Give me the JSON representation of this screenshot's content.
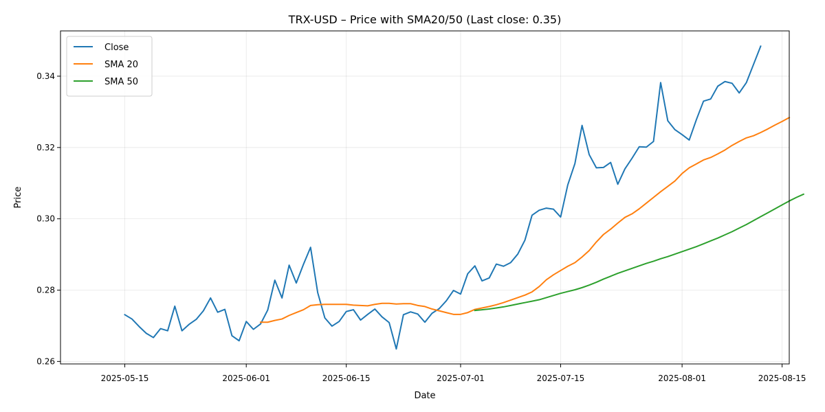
{
  "chart_data": {
    "type": "line",
    "title": "TRX-USD – Price with SMA20/50 (Last close: 0.35)",
    "xlabel": "Date",
    "ylabel": "Price",
    "x_ticks": [
      "2025-05-15",
      "2025-06-01",
      "2025-06-15",
      "2025-07-01",
      "2025-07-15",
      "2025-08-01",
      "2025-08-15"
    ],
    "y_ticks": [
      "0.26",
      "0.28",
      "0.30",
      "0.32",
      "0.34"
    ],
    "xlim": [
      "2025-05-06",
      "2025-08-16"
    ],
    "ylim": [
      0.2593,
      0.3527
    ],
    "grid": true,
    "legend_position": "top-left",
    "series": [
      {
        "name": "Close",
        "color": "#1f77b4",
        "start_date": "2025-05-15",
        "values": [
          0.2731,
          0.2719,
          0.2698,
          0.2679,
          0.2667,
          0.2692,
          0.2686,
          0.2755,
          0.2686,
          0.2704,
          0.2718,
          0.2742,
          0.2778,
          0.2738,
          0.2746,
          0.2672,
          0.2658,
          0.2712,
          0.269,
          0.2705,
          0.2744,
          0.2828,
          0.2778,
          0.287,
          0.282,
          0.2872,
          0.292,
          0.2793,
          0.2722,
          0.2699,
          0.2712,
          0.274,
          0.2745,
          0.2716,
          0.2732,
          0.2747,
          0.2725,
          0.2709,
          0.2635,
          0.2731,
          0.2739,
          0.2733,
          0.271,
          0.2735,
          0.2748,
          0.277,
          0.2799,
          0.2789,
          0.2846,
          0.2868,
          0.2826,
          0.2834,
          0.2873,
          0.2867,
          0.2877,
          0.2901,
          0.294,
          0.301,
          0.3024,
          0.303,
          0.3027,
          0.3005,
          0.3095,
          0.3155,
          0.3262,
          0.318,
          0.3143,
          0.3144,
          0.3158,
          0.3097,
          0.314,
          0.317,
          0.3202,
          0.3201,
          0.3217,
          0.3382,
          0.3275,
          0.325,
          0.3236,
          0.3221,
          0.3278,
          0.333,
          0.3336,
          0.3372,
          0.3385,
          0.338,
          0.3353,
          0.3382,
          0.3433,
          0.3484
        ]
      },
      {
        "name": "SMA 20",
        "color": "#ff7f0e",
        "start_date": "2025-06-03",
        "values": [
          0.271,
          0.271,
          0.2715,
          0.2719,
          0.2729,
          0.2737,
          0.2745,
          0.2757,
          0.2759,
          0.276,
          0.276,
          0.276,
          0.276,
          0.2758,
          0.2757,
          0.2756,
          0.276,
          0.2763,
          0.2763,
          0.2761,
          0.2762,
          0.2762,
          0.2757,
          0.2754,
          0.2747,
          0.2742,
          0.2737,
          0.2732,
          0.2732,
          0.2737,
          0.2746,
          0.275,
          0.2754,
          0.2759,
          0.2765,
          0.2772,
          0.2779,
          0.2786,
          0.2795,
          0.281,
          0.2829,
          0.2843,
          0.2855,
          0.2867,
          0.2877,
          0.2893,
          0.2911,
          0.2935,
          0.2956,
          0.2971,
          0.2988,
          0.3004,
          0.3014,
          0.3028,
          0.3044,
          0.306,
          0.3076,
          0.3091,
          0.3106,
          0.3127,
          0.3143,
          0.3154,
          0.3165,
          0.3172,
          0.3182,
          0.3193,
          0.3206,
          0.3217,
          0.3227,
          0.3233,
          0.3242,
          0.3252,
          0.3263,
          0.3273,
          0.3284
        ]
      },
      {
        "name": "SMA 50",
        "color": "#2ca02c",
        "start_date": "2025-07-03",
        "values": [
          0.2743,
          0.2745,
          0.2747,
          0.275,
          0.2753,
          0.2757,
          0.2761,
          0.2765,
          0.2769,
          0.2773,
          0.2779,
          0.2785,
          0.2791,
          0.2796,
          0.2801,
          0.2807,
          0.2814,
          0.2822,
          0.2831,
          0.2839,
          0.2847,
          0.2854,
          0.2861,
          0.2868,
          0.2875,
          0.2881,
          0.2888,
          0.2894,
          0.2901,
          0.2908,
          0.2915,
          0.2922,
          0.293,
          0.2938,
          0.2946,
          0.2955,
          0.2964,
          0.2974,
          0.2984,
          0.2995,
          0.3006,
          0.3017,
          0.3028,
          0.3039,
          0.305,
          0.306,
          0.3069
        ]
      }
    ]
  }
}
